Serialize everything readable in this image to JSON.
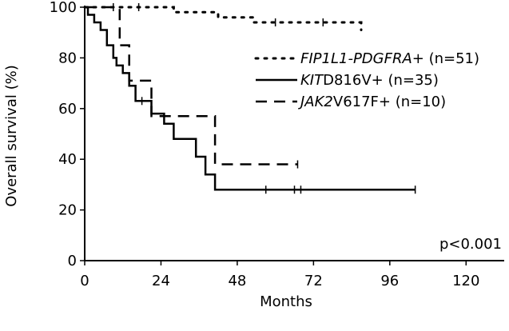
{
  "chart_data": {
    "type": "line",
    "subtype": "kaplan-meier",
    "xlabel": "Months",
    "ylabel": "Overall survival (%)",
    "xlim": [
      0,
      132
    ],
    "ylim": [
      0,
      100
    ],
    "xticks": [
      0,
      24,
      48,
      72,
      96,
      120
    ],
    "yticks": [
      0,
      20,
      40,
      60,
      80,
      100
    ],
    "annotation": "p<0.001",
    "grid": false,
    "legend_position": "upper-right",
    "series": [
      {
        "name": "FIP1L1-PDGFRA+ (n=51)",
        "legend_italic_part": "FIP1L1-PDGFRA+",
        "legend_plain_part": " (n=51)",
        "line_style": "dotted",
        "color": "#000000",
        "steps": [
          [
            0,
            100
          ],
          [
            28,
            100
          ],
          [
            28,
            98
          ],
          [
            42,
            98
          ],
          [
            42,
            96
          ],
          [
            53,
            96
          ],
          [
            53,
            94
          ],
          [
            87,
            94
          ],
          [
            87,
            91
          ]
        ],
        "censored": [
          [
            9,
            100
          ],
          [
            17,
            100
          ],
          [
            60,
            94
          ],
          [
            75,
            94
          ]
        ]
      },
      {
        "name": "KIT D816V+ (n=35)",
        "legend_italic_part": "KIT",
        "legend_plain_part": "D816V+ (n=35)",
        "line_style": "solid",
        "color": "#000000",
        "steps": [
          [
            0,
            100
          ],
          [
            1,
            100
          ],
          [
            1,
            97
          ],
          [
            3,
            97
          ],
          [
            3,
            94
          ],
          [
            5,
            94
          ],
          [
            5,
            91
          ],
          [
            7,
            91
          ],
          [
            7,
            85
          ],
          [
            9,
            85
          ],
          [
            9,
            80
          ],
          [
            10,
            80
          ],
          [
            10,
            77
          ],
          [
            12,
            77
          ],
          [
            12,
            74
          ],
          [
            14,
            74
          ],
          [
            14,
            69
          ],
          [
            16,
            69
          ],
          [
            16,
            63
          ],
          [
            21,
            63
          ],
          [
            21,
            58
          ],
          [
            25,
            58
          ],
          [
            25,
            54
          ],
          [
            28,
            54
          ],
          [
            28,
            48
          ],
          [
            35,
            48
          ],
          [
            35,
            41
          ],
          [
            38,
            41
          ],
          [
            38,
            34
          ],
          [
            41,
            34
          ],
          [
            41,
            28
          ],
          [
            104,
            28
          ]
        ],
        "censored": [
          [
            18,
            63
          ],
          [
            57,
            28
          ],
          [
            66,
            28
          ],
          [
            68,
            28
          ],
          [
            104,
            28
          ]
        ]
      },
      {
        "name": "JAK2 V617F+ (n=10)",
        "legend_italic_part": "JAK2",
        "legend_plain_part": "V617F+ (n=10)",
        "line_style": "dashed",
        "color": "#000000",
        "steps": [
          [
            0,
            100
          ],
          [
            11,
            100
          ],
          [
            11,
            85
          ],
          [
            14,
            85
          ],
          [
            14,
            71
          ],
          [
            21,
            71
          ],
          [
            21,
            57
          ],
          [
            41,
            57
          ],
          [
            41,
            38
          ],
          [
            67,
            38
          ]
        ],
        "censored": [
          [
            67,
            38
          ]
        ]
      }
    ]
  }
}
